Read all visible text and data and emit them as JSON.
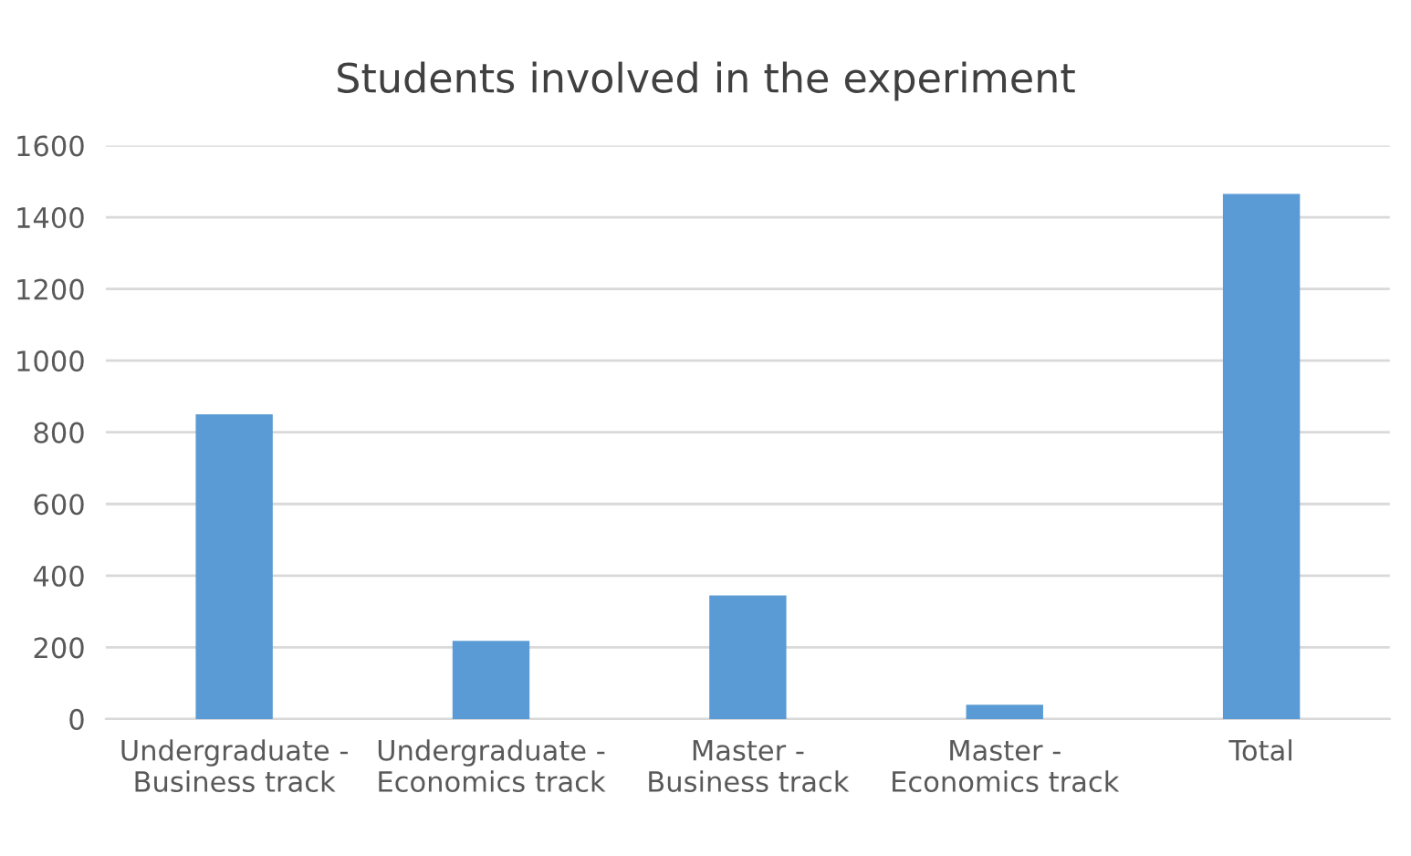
{
  "chart_data": {
    "type": "bar",
    "title": "Students involved in the experiment",
    "categories": [
      "Undergraduate -\nBusiness track",
      "Undergraduate -\nEconomics track",
      "Master -\nBusiness track",
      "Master -\nEconomics track",
      "Total"
    ],
    "values": [
      850,
      218,
      345,
      40,
      1465
    ],
    "color": "#5b9bd5",
    "ylim": [
      0,
      1600
    ],
    "yticks": [
      0,
      200,
      400,
      600,
      800,
      1000,
      1200,
      1400,
      1600
    ],
    "grid": "y",
    "legend": false
  }
}
